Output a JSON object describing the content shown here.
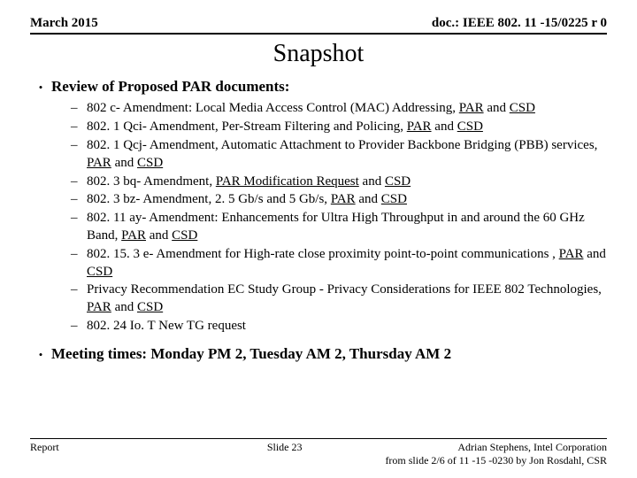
{
  "header": {
    "left": "March 2015",
    "right": "doc.: IEEE 802. 11 -15/0225 r 0"
  },
  "title": "Snapshot",
  "main": {
    "bullet1": "Review of Proposed PAR documents:",
    "items": [
      {
        "pre": "802 c- Amendment: Local Media Access Control (MAC) Addressing, ",
        "l1": "PAR",
        "mid": " and ",
        "l2": "CSD",
        "post": ""
      },
      {
        "pre": "802. 1 Qci- Amendment, Per-Stream Filtering and Policing, ",
        "l1": "PAR",
        "mid": " and ",
        "l2": "CSD",
        "post": ""
      },
      {
        "pre": "802. 1 Qcj- Amendment, Automatic Attachment to Provider Backbone Bridging (PBB) services, ",
        "l1": "PAR",
        "mid": " and ",
        "l2": "CSD",
        "post": ""
      },
      {
        "pre": "802. 3 bq- Amendment,  ",
        "l1": "PAR Modification Request",
        "mid": " and ",
        "l2": "CSD",
        "post": ""
      },
      {
        "pre": "802. 3 bz- Amendment, 2. 5 Gb/s and 5 Gb/s, ",
        "l1": "PAR",
        "mid": " and ",
        "l2": "CSD",
        "post": ""
      },
      {
        "pre": "802. 11 ay- Amendment: Enhancements for Ultra High Throughput in and around the 60 GHz Band, ",
        "l1": "PAR",
        "mid": " and ",
        "l2": "CSD",
        "post": ""
      },
      {
        "pre": "802. 15. 3 e- Amendment for High-rate close proximity point-to-point communications ,  ",
        "l1": "PAR",
        "mid": " and ",
        "l2": "CSD",
        "post": ""
      },
      {
        "pre": "Privacy Recommendation EC Study Group - Privacy Considerations for IEEE 802 Technologies, ",
        "l1": "PAR",
        "mid": " and ",
        "l2": "CSD",
        "post": ""
      },
      {
        "pre": "802. 24 Io. T New TG request",
        "l1": "",
        "mid": "",
        "l2": "",
        "post": ""
      }
    ],
    "bullet2": "Meeting times: Monday PM 2, Tuesday AM 2, Thursday AM 2"
  },
  "footer": {
    "left": "Report",
    "center": "Slide 23",
    "right1": "Adrian Stephens, Intel Corporation",
    "right2": "from slide 2/6 of 11 -15 -0230 by Jon Rosdahl, CSR"
  }
}
